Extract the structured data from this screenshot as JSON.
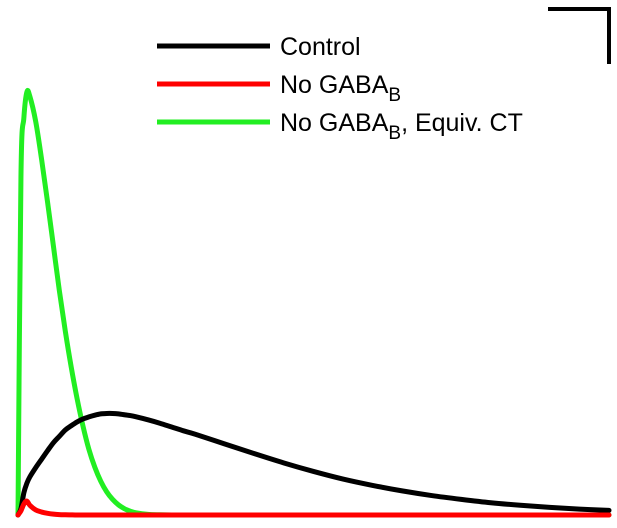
{
  "chart_data": {
    "type": "line",
    "title": "",
    "xlabel": "",
    "ylabel": "",
    "xlim": [
      0,
      100
    ],
    "ylim": [
      0,
      100
    ],
    "grid": false,
    "legend_position": "top-center",
    "scale_bar": true,
    "x": [
      0,
      0.5,
      1,
      1.5,
      2,
      3,
      4,
      5,
      6,
      7,
      8,
      9,
      10,
      11,
      12,
      13,
      14,
      15,
      16,
      17,
      18,
      19,
      20,
      22,
      24,
      26,
      28,
      30,
      35,
      40,
      45,
      50,
      55,
      60,
      65,
      70,
      75,
      80,
      85,
      90,
      95,
      100
    ],
    "series": [
      {
        "name": "Control",
        "color": "#000000",
        "legend": {
          "main": "Control",
          "sub": "",
          "suffix": ""
        },
        "values": [
          0,
          1.5,
          5.3,
          7.5,
          9.0,
          11.2,
          13.2,
          15.2,
          17.1,
          18.6,
          20.1,
          21.1,
          22.0,
          22.7,
          23.2,
          23.6,
          23.9,
          24.0,
          24.0,
          23.9,
          23.7,
          23.5,
          23.2,
          22.5,
          21.7,
          20.8,
          19.9,
          19.1,
          16.8,
          14.5,
          12.3,
          10.3,
          8.5,
          7.0,
          5.7,
          4.6,
          3.7,
          2.9,
          2.3,
          1.8,
          1.4,
          1.1
        ]
      },
      {
        "name": "No GABAB",
        "color": "#ff0000",
        "legend": {
          "main": "No GABA",
          "sub": "B",
          "suffix": ""
        },
        "values": [
          0,
          1.0,
          2.6,
          3.3,
          2.3,
          1.2,
          0.7,
          0.4,
          0.2,
          0.1,
          0.06,
          0.03,
          0,
          0,
          0,
          0,
          0,
          0,
          0,
          0,
          0,
          0,
          0,
          0,
          0,
          0,
          0,
          0,
          0,
          0,
          0,
          0,
          0,
          0,
          0,
          0,
          0,
          0,
          0,
          0,
          0,
          0
        ]
      },
      {
        "name": "No GABAB, Equiv. CT",
        "color": "#22ee22",
        "legend": {
          "main": "No GABA",
          "sub": "B",
          "suffix": ", Equiv. CT"
        },
        "values": [
          0,
          80.0,
          94.0,
          100.0,
          99.0,
          93.0,
          84.0,
          74.0,
          63.5,
          53.0,
          43.5,
          35.0,
          27.5,
          21.0,
          15.5,
          11.3,
          8.0,
          5.5,
          3.7,
          2.4,
          1.5,
          0.9,
          0.5,
          0.15,
          0.05,
          0,
          0,
          0,
          0,
          0,
          0,
          0,
          0,
          0,
          0,
          0,
          0,
          0,
          0,
          0,
          0,
          0
        ]
      }
    ]
  }
}
